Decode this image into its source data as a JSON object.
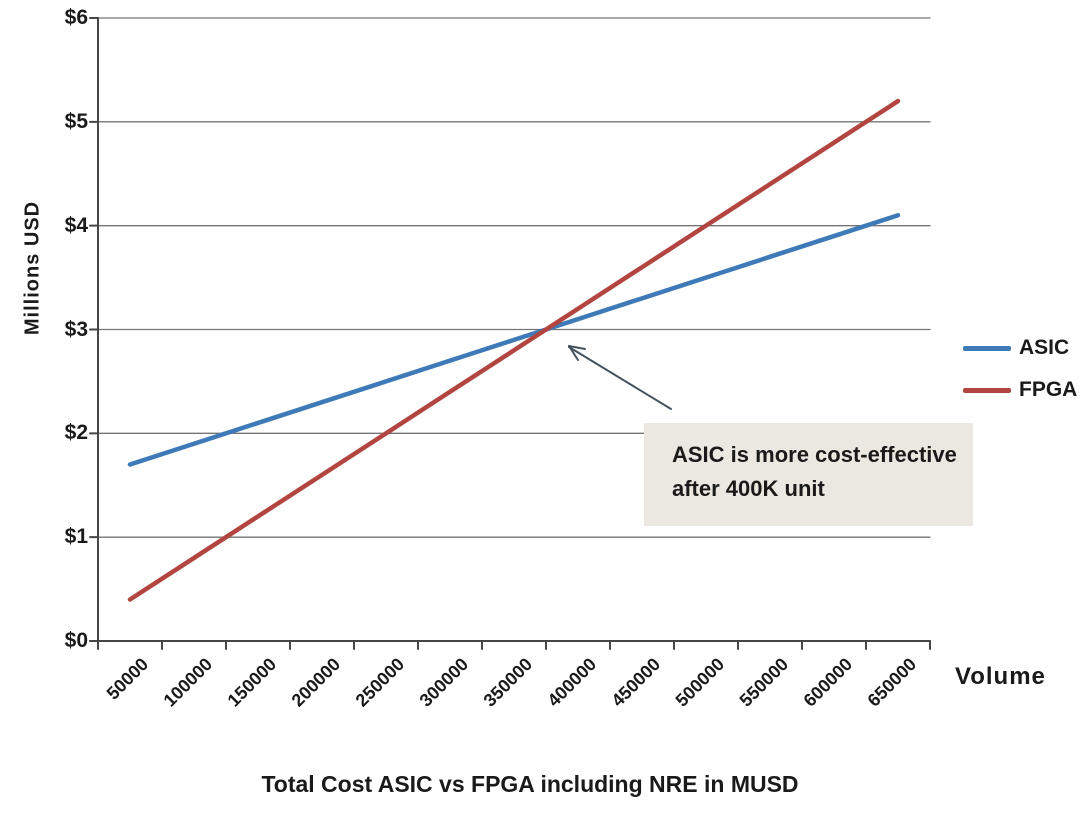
{
  "chart_data": {
    "type": "line",
    "title": "Total Cost ASIC vs FPGA including NRE in MUSD",
    "xlabel": "Volume",
    "ylabel": "Millions USD",
    "categories": [
      "50000",
      "100000",
      "150000",
      "200000",
      "250000",
      "300000",
      "350000",
      "400000",
      "450000",
      "500000",
      "550000",
      "600000",
      "650000"
    ],
    "series": [
      {
        "name": "ASIC",
        "color": "#3f7ab8",
        "values": [
          1.7,
          1.9,
          2.1,
          2.3,
          2.5,
          2.7,
          2.9,
          3.1,
          3.3,
          3.5,
          3.7,
          3.9,
          4.1
        ]
      },
      {
        "name": "FPGA",
        "color": "#b2453f",
        "values": [
          0.4,
          0.8,
          1.2,
          1.6,
          2.0,
          2.4,
          2.8,
          3.2,
          3.6,
          4.0,
          4.4,
          4.8,
          5.2
        ]
      }
    ],
    "y_ticks": [
      "$0",
      "$1",
      "$2",
      "$3",
      "$4",
      "$5",
      "$6"
    ],
    "ylim": [
      0,
      6
    ],
    "grid": "horizontal",
    "legend_position": "right"
  },
  "annotation": {
    "line1": "ASIC is more cost-effective",
    "line2": "after 400K unit",
    "background": "#eae8e1",
    "arrow_color": "#44525f"
  },
  "style": {
    "axis_color": "#454545",
    "gridline_color": "#757575",
    "text_color": "#1a1a1a",
    "background": "#ffffff"
  }
}
